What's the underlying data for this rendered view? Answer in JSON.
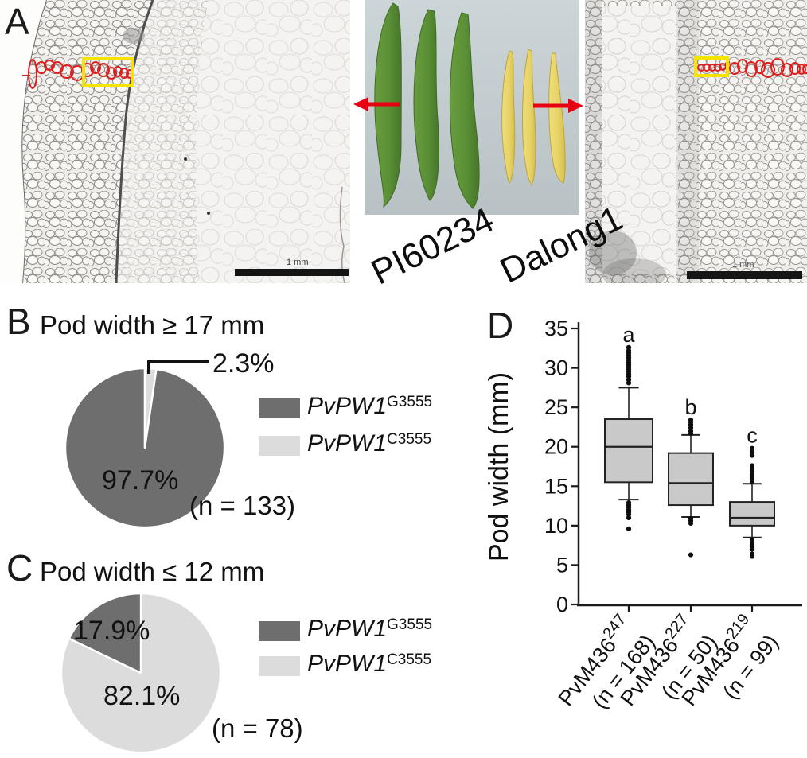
{
  "figure_labels": {
    "panel_a": "A",
    "panel_b": "B",
    "panel_c": "C",
    "panel_d": "D"
  },
  "panel_a": {
    "genotype_left": "PI60234",
    "genotype_right": "Dalong1",
    "scale_bar_left": "1 mm",
    "scale_bar_right": "1 mm",
    "annotation_colors": {
      "highlight_box": "#f6e400",
      "cell_trace": "#e01f1f",
      "arrow": "#e60012"
    }
  },
  "panel_b": {
    "title": "Pod width ≥ 17 mm",
    "n_label": "(n = 133)",
    "slice_labels": {
      "major": "97.7%",
      "minor": "2.3%"
    },
    "legend": [
      {
        "gene": "PvPW1",
        "allele": "G3555",
        "color": "#6e6e6e"
      },
      {
        "gene": "PvPW1",
        "allele": "C3555",
        "color": "#dcdcdc"
      }
    ]
  },
  "panel_c": {
    "title": "Pod width ≤ 12 mm",
    "n_label": "(n = 78)",
    "slice_labels": {
      "minor": "17.9%",
      "major": "82.1%"
    },
    "legend": [
      {
        "gene": "PvPW1",
        "allele": "G3555",
        "color": "#6e6e6e"
      },
      {
        "gene": "PvPW1",
        "allele": "C3555",
        "color": "#dcdcdc"
      }
    ]
  },
  "panel_d": {
    "ylabel": "Pod width (mm)"
  },
  "chart_data": [
    {
      "id": "pie_pod_wide",
      "type": "pie",
      "panel": "B",
      "title": "Pod width ≥ 17 mm",
      "n": 133,
      "start_deg": 0,
      "slices": [
        {
          "label": "PvPW1 C3555",
          "pct": 2.3,
          "color": "#dcdcdc"
        },
        {
          "label": "PvPW1 G3555",
          "pct": 97.7,
          "color": "#6e6e6e"
        }
      ],
      "legend_position": "right"
    },
    {
      "id": "pie_pod_narrow",
      "type": "pie",
      "panel": "C",
      "title": "Pod width ≤ 12 mm",
      "n": 78,
      "start_deg": -64.4,
      "slices": [
        {
          "label": "PvPW1 G3555",
          "pct": 17.9,
          "color": "#6e6e6e"
        },
        {
          "label": "PvPW1 C3555",
          "pct": 82.1,
          "color": "#dcdcdc"
        }
      ],
      "legend_position": "right"
    },
    {
      "id": "box_pod_width",
      "type": "box",
      "panel": "D",
      "ylabel": "Pod width (mm)",
      "ylim": [
        0,
        35
      ],
      "yticks": [
        0,
        5,
        10,
        15,
        20,
        25,
        30,
        35
      ],
      "grid": false,
      "groups": [
        {
          "name": "PvM436",
          "sup": "247",
          "n_label": "(n = 168)",
          "sig": "a",
          "q1": 15.5,
          "median": 20.0,
          "q3": 23.5,
          "whisker_low": 13.3,
          "whisker_high": 27.5,
          "outliers_high": [
            28.1,
            28.5,
            28.9,
            29.2,
            29.5,
            29.8,
            30.1,
            30.4,
            30.7,
            31.0,
            31.3,
            31.6,
            31.9,
            32.2,
            32.6
          ],
          "outliers_low": [
            12.9,
            12.6,
            12.3,
            12.0,
            11.7,
            11.4,
            11.0,
            9.6
          ]
        },
        {
          "name": "PvM436",
          "sup": "227",
          "n_label": "(n = 50)",
          "sig": "b",
          "q1": 12.6,
          "median": 15.4,
          "q3": 19.2,
          "whisker_low": 11.1,
          "whisker_high": 21.5,
          "outliers_high": [
            21.7,
            22.0,
            22.4,
            22.8,
            23.1,
            23.4
          ],
          "outliers_low": [
            10.9,
            10.6,
            10.3,
            6.3
          ]
        },
        {
          "name": "PvM436",
          "sup": "219",
          "n_label": "(n = 99)",
          "sig": "c",
          "q1": 10.0,
          "median": 11.0,
          "q3": 13.0,
          "whisker_low": 8.5,
          "whisker_high": 15.3,
          "outliers_high": [
            15.6,
            15.9,
            16.2,
            16.5,
            16.8,
            17.2,
            17.6,
            18.9,
            19.3,
            19.8
          ],
          "outliers_low": [
            8.2,
            7.9,
            7.6,
            7.3,
            7.0,
            6.4,
            6.1
          ]
        }
      ]
    }
  ]
}
